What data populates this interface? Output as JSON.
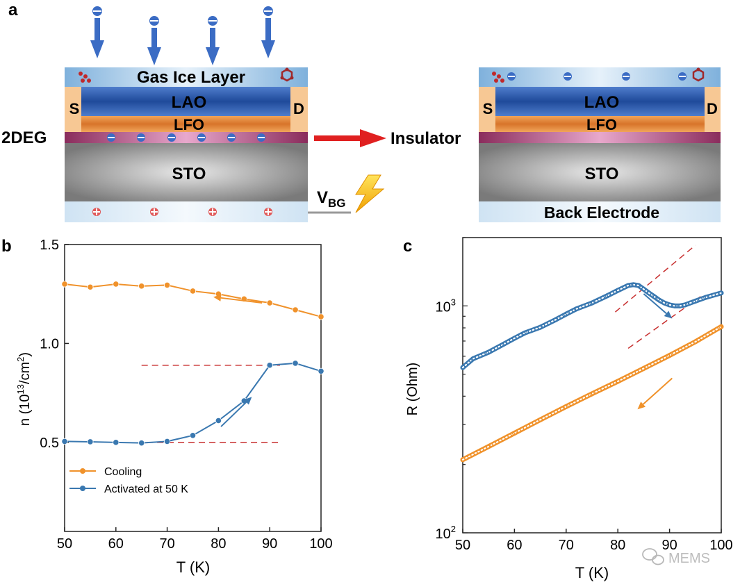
{
  "panel_labels": {
    "a": "a",
    "b": "b",
    "c": "c"
  },
  "schematic": {
    "left": {
      "gas_layer": "Gas Ice Layer",
      "lao": "LAO",
      "lfo": "LFO",
      "sto": "STO",
      "source": "S",
      "drain": "D",
      "twodeg": "2DEG",
      "gate_main": "V",
      "gate_sub": "BG"
    },
    "transition_label": "Insulator",
    "right": {
      "lao": "LAO",
      "lfo": "LFO",
      "sto": "STO",
      "source": "S",
      "drain": "D",
      "back_electrode": "Back Electrode"
    },
    "colors": {
      "gas": "#a9cdea",
      "lao": "#2f5fb0",
      "lfo": "#e58a3a",
      "twodeg": "#9b3b6b",
      "sto": "#8a8a8a",
      "contacts": "#f7c894",
      "arrow": "#3b6cc4",
      "red_arrow": "#e02020"
    }
  },
  "watermark": "MEMS",
  "chart_data": [
    {
      "type": "line",
      "xlabel": "T (K)",
      "ylabel_main": "n (10",
      "ylabel_sup1": "13",
      "ylabel_mid": "/cm",
      "ylabel_sup2": "2",
      "ylabel_end": ")",
      "xlim": [
        50,
        100
      ],
      "ylim": [
        0.05,
        1.5
      ],
      "xticks": [
        50,
        60,
        70,
        80,
        90,
        100
      ],
      "yticks": [
        0.5,
        1.0,
        1.5
      ],
      "ytick_labels": [
        "0.5",
        "1.0",
        "1.5"
      ],
      "legend_position": "bottom-left",
      "series": [
        {
          "name": "Cooling",
          "color": "#f0922b",
          "x": [
            50,
            55,
            60,
            65,
            70,
            75,
            80,
            85,
            90,
            95,
            100
          ],
          "y": [
            1.3,
            1.285,
            1.3,
            1.29,
            1.295,
            1.265,
            1.25,
            1.225,
            1.205,
            1.17,
            1.135
          ]
        },
        {
          "name": "Activated at 50 K",
          "color": "#3a78b0",
          "x": [
            50,
            55,
            60,
            65,
            70,
            75,
            80,
            85,
            90,
            95,
            100
          ],
          "y": [
            0.505,
            0.503,
            0.5,
            0.497,
            0.505,
            0.535,
            0.61,
            0.71,
            0.89,
            0.9,
            0.86
          ]
        }
      ],
      "guides": [
        {
          "color": "#c83030",
          "x": [
            65,
            92
          ],
          "y": [
            0.89,
            0.89
          ]
        },
        {
          "color": "#c83030",
          "x": [
            66,
            92
          ],
          "y": [
            0.5,
            0.5
          ]
        }
      ],
      "direction_arrows": [
        {
          "color": "#f0922b",
          "from": [
            88.5,
            1.205
          ],
          "to": [
            79,
            1.235
          ]
        },
        {
          "color": "#3a78b0",
          "from": [
            80.5,
            0.58
          ],
          "to": [
            86.5,
            0.73
          ]
        }
      ]
    },
    {
      "type": "line",
      "scale_y": "log",
      "xlabel": "T (K)",
      "ylabel": "R (Ohm)",
      "xlim": [
        50,
        100
      ],
      "ylim": [
        100,
        2000
      ],
      "xticks": [
        50,
        60,
        70,
        80,
        90,
        100
      ],
      "ytick_major": [
        100,
        1000
      ],
      "ytick_mantissa": "10",
      "ytick_exponents": [
        "2",
        "3"
      ],
      "series": [
        {
          "color": "#f0922b",
          "marker": "open-circle",
          "x": [
            50,
            55,
            60,
            65,
            70,
            75,
            80,
            85,
            90,
            95,
            100
          ],
          "y": [
            210,
            240,
            275,
            315,
            360,
            410,
            465,
            530,
            605,
            695,
            810
          ]
        },
        {
          "color": "#3a78b0",
          "marker": "open-circle",
          "x": [
            50,
            52,
            55,
            58,
            60,
            62,
            65,
            68,
            70,
            72,
            75,
            78,
            80,
            82,
            83,
            84,
            85,
            86,
            87,
            88,
            89,
            90,
            91,
            92,
            93,
            94,
            95,
            97,
            100
          ],
          "y": [
            535,
            585,
            625,
            680,
            720,
            760,
            805,
            870,
            920,
            970,
            1030,
            1110,
            1170,
            1230,
            1240,
            1230,
            1185,
            1140,
            1100,
            1060,
            1030,
            1010,
            1000,
            1000,
            1010,
            1030,
            1050,
            1090,
            1140
          ]
        }
      ],
      "guides": [
        {
          "color": "#c83030",
          "x": [
            79.5,
            95
          ],
          "y": [
            940,
            1850
          ]
        },
        {
          "color": "#c83030",
          "x": [
            82,
            96
          ],
          "y": [
            650,
            1100
          ]
        }
      ],
      "direction_arrows": [
        {
          "color": "#3a78b0",
          "from": [
            85,
            1130
          ],
          "to": [
            90.5,
            880
          ]
        },
        {
          "color": "#f0922b",
          "from": [
            90.5,
            480
          ],
          "to": [
            83.8,
            350
          ]
        }
      ]
    }
  ]
}
